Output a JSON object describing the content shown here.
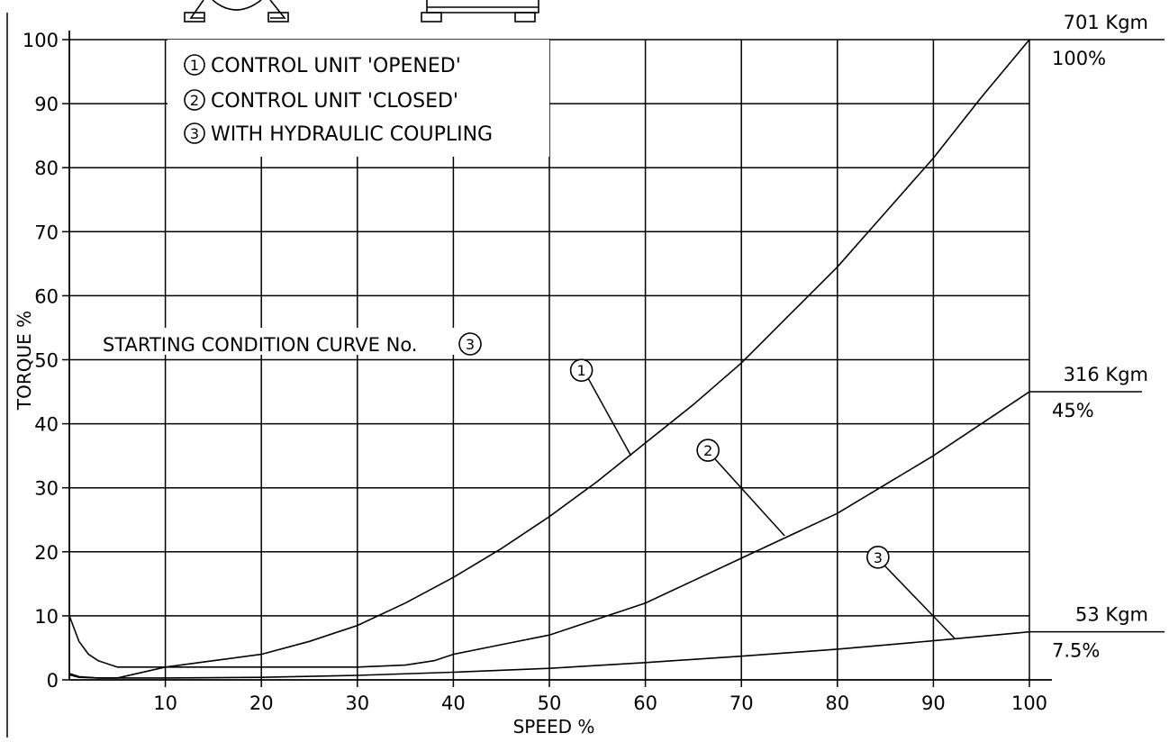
{
  "chart_data": {
    "type": "line",
    "xlabel": "SPEED %",
    "ylabel": "TORQUE %",
    "xlim": [
      0,
      100
    ],
    "ylim": [
      0,
      100
    ],
    "x_ticks": [
      "10",
      "20",
      "30",
      "40",
      "50",
      "60",
      "70",
      "80",
      "90",
      "100"
    ],
    "y_ticks": [
      "0",
      "10",
      "20",
      "30",
      "40",
      "50",
      "60",
      "70",
      "80",
      "90",
      "100"
    ],
    "grid": true,
    "legend": {
      "placement": "top-left",
      "items": [
        {
          "num": "1",
          "label": "CONTROL UNIT 'OPENED'"
        },
        {
          "num": "2",
          "label": "CONTROL UNIT 'CLOSED'"
        },
        {
          "num": "3",
          "label": "WITH HYDRAULIC COUPLING"
        }
      ]
    },
    "annotation": {
      "text": "STARTING CONDITION CURVE No.",
      "num": "3"
    },
    "end_labels": [
      {
        "kgm": "701 Kgm",
        "pct": "100%",
        "y": 100
      },
      {
        "kgm": "316 Kgm",
        "pct": "45%",
        "y": 45
      },
      {
        "kgm": "53 Kgm",
        "pct": "7.5%",
        "y": 7.5
      }
    ],
    "series": [
      {
        "id": "1",
        "x": [
          0,
          1,
          2,
          3,
          5,
          10,
          15,
          20,
          25,
          30,
          35,
          40,
          45,
          50,
          55,
          60,
          65,
          70,
          75,
          80,
          85,
          90,
          95,
          100
        ],
        "y": [
          10,
          6,
          4,
          3,
          2,
          2,
          3,
          4,
          6,
          8.5,
          12,
          16,
          20.5,
          25.5,
          31,
          37,
          43,
          49.5,
          57,
          64.5,
          73,
          81.5,
          91,
          100
        ]
      },
      {
        "id": "2",
        "x": [
          0,
          1,
          3,
          5,
          10,
          20,
          30,
          35,
          38,
          40,
          45,
          50,
          55,
          60,
          65,
          70,
          75,
          80,
          85,
          90,
          95,
          100
        ],
        "y": [
          1,
          0.5,
          0.3,
          0.3,
          2,
          2,
          2,
          2.3,
          3,
          4,
          5.5,
          7,
          9.5,
          12,
          15.5,
          19,
          22.5,
          26,
          30.5,
          35,
          40,
          45
        ]
      },
      {
        "id": "3",
        "x": [
          0,
          1,
          3,
          5,
          10,
          20,
          30,
          40,
          50,
          60,
          70,
          80,
          90,
          100
        ],
        "y": [
          0.8,
          0.4,
          0.3,
          0.3,
          0.3,
          0.4,
          0.7,
          1.2,
          1.8,
          2.7,
          3.7,
          4.8,
          6.1,
          7.5
        ]
      }
    ],
    "callouts": [
      {
        "id": "1",
        "curve_x": 58.5,
        "curve_y": 35
      },
      {
        "id": "2",
        "curve_x": 74.5,
        "curve_y": 22.5
      },
      {
        "id": "3",
        "curve_x": 92.2,
        "curve_y": 6.5
      }
    ]
  }
}
